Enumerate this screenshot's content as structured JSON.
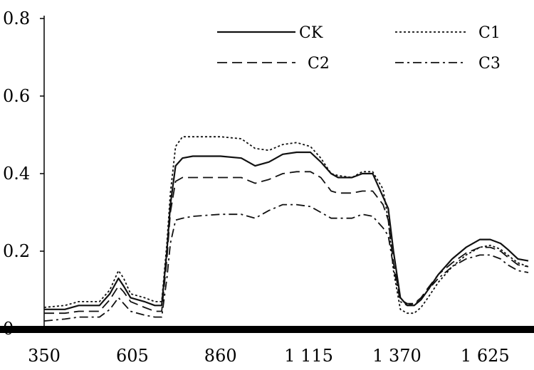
{
  "chart_data": {
    "type": "line",
    "xlabel": "",
    "ylabel": "",
    "xlim": [
      350,
      1750
    ],
    "ylim": [
      0,
      0.8
    ],
    "x_ticks": [
      350,
      605,
      860,
      1115,
      1370,
      1625
    ],
    "x_tick_labels": [
      "350",
      "605",
      "860",
      "1 115",
      "1 370",
      "1 625"
    ],
    "y_ticks": [
      0,
      0.2,
      0.4,
      0.6,
      0.8
    ],
    "y_tick_labels": [
      "0",
      "0.2",
      "0.4",
      "0.6",
      "0.8"
    ],
    "grid": false,
    "legend_position": "top-right",
    "series": [
      {
        "name": "CK",
        "style": "solid",
        "x": [
          350,
          410,
          450,
          490,
          510,
          540,
          565,
          580,
          600,
          640,
          670,
          690,
          705,
          715,
          730,
          750,
          780,
          860,
          920,
          960,
          1000,
          1040,
          1080,
          1120,
          1150,
          1180,
          1200,
          1240,
          1270,
          1300,
          1330,
          1345,
          1360,
          1380,
          1400,
          1420,
          1440,
          1460,
          1490,
          1530,
          1570,
          1610,
          1640,
          1670,
          1690,
          1720,
          1750
        ],
        "y": [
          0.05,
          0.05,
          0.06,
          0.06,
          0.06,
          0.09,
          0.13,
          0.11,
          0.08,
          0.07,
          0.06,
          0.06,
          0.2,
          0.32,
          0.42,
          0.44,
          0.445,
          0.445,
          0.44,
          0.42,
          0.43,
          0.45,
          0.455,
          0.455,
          0.43,
          0.4,
          0.39,
          0.39,
          0.4,
          0.4,
          0.34,
          0.31,
          0.2,
          0.08,
          0.06,
          0.06,
          0.075,
          0.1,
          0.14,
          0.18,
          0.21,
          0.23,
          0.23,
          0.22,
          0.205,
          0.18,
          0.175
        ]
      },
      {
        "name": "C1",
        "style": "dotted",
        "x": [
          350,
          410,
          450,
          490,
          510,
          540,
          565,
          580,
          600,
          640,
          670,
          690,
          705,
          715,
          730,
          750,
          780,
          860,
          920,
          960,
          1000,
          1040,
          1080,
          1120,
          1150,
          1180,
          1200,
          1240,
          1270,
          1300,
          1330,
          1345,
          1360,
          1380,
          1400,
          1420,
          1440,
          1460,
          1490,
          1530,
          1570,
          1610,
          1640,
          1670,
          1690,
          1720,
          1750
        ],
        "y": [
          0.055,
          0.06,
          0.07,
          0.07,
          0.07,
          0.1,
          0.15,
          0.13,
          0.09,
          0.08,
          0.07,
          0.07,
          0.22,
          0.35,
          0.47,
          0.495,
          0.495,
          0.495,
          0.49,
          0.465,
          0.46,
          0.475,
          0.48,
          0.47,
          0.44,
          0.4,
          0.395,
          0.39,
          0.405,
          0.405,
          0.36,
          0.28,
          0.15,
          0.05,
          0.04,
          0.04,
          0.055,
          0.08,
          0.12,
          0.16,
          0.19,
          0.21,
          0.215,
          0.205,
          0.19,
          0.17,
          0.16
        ]
      },
      {
        "name": "C2",
        "style": "dashed",
        "x": [
          350,
          410,
          450,
          490,
          510,
          540,
          565,
          580,
          600,
          640,
          670,
          690,
          705,
          715,
          730,
          750,
          780,
          860,
          920,
          960,
          1000,
          1040,
          1080,
          1120,
          1150,
          1180,
          1200,
          1240,
          1270,
          1300,
          1330,
          1345,
          1360,
          1380,
          1400,
          1420,
          1440,
          1460,
          1490,
          1530,
          1570,
          1610,
          1640,
          1670,
          1690,
          1720,
          1750
        ],
        "y": [
          0.04,
          0.04,
          0.045,
          0.045,
          0.045,
          0.075,
          0.11,
          0.095,
          0.07,
          0.055,
          0.045,
          0.045,
          0.18,
          0.3,
          0.38,
          0.39,
          0.39,
          0.39,
          0.39,
          0.375,
          0.385,
          0.4,
          0.405,
          0.405,
          0.39,
          0.355,
          0.35,
          0.35,
          0.355,
          0.355,
          0.32,
          0.28,
          0.17,
          0.075,
          0.065,
          0.065,
          0.08,
          0.105,
          0.14,
          0.17,
          0.195,
          0.21,
          0.21,
          0.2,
          0.185,
          0.165,
          0.16
        ]
      },
      {
        "name": "C3",
        "style": "dashdot",
        "x": [
          350,
          410,
          450,
          490,
          510,
          540,
          565,
          580,
          600,
          640,
          670,
          690,
          705,
          715,
          730,
          750,
          780,
          860,
          920,
          960,
          1000,
          1040,
          1080,
          1120,
          1150,
          1180,
          1200,
          1240,
          1270,
          1300,
          1330,
          1345,
          1360,
          1380,
          1400,
          1420,
          1440,
          1460,
          1490,
          1530,
          1570,
          1610,
          1640,
          1670,
          1690,
          1720,
          1750
        ],
        "y": [
          0.02,
          0.025,
          0.03,
          0.03,
          0.03,
          0.05,
          0.08,
          0.065,
          0.045,
          0.035,
          0.03,
          0.03,
          0.13,
          0.22,
          0.28,
          0.285,
          0.29,
          0.295,
          0.295,
          0.285,
          0.305,
          0.32,
          0.32,
          0.315,
          0.3,
          0.285,
          0.285,
          0.285,
          0.295,
          0.29,
          0.26,
          0.24,
          0.16,
          0.07,
          0.06,
          0.065,
          0.075,
          0.1,
          0.13,
          0.16,
          0.18,
          0.19,
          0.19,
          0.18,
          0.165,
          0.15,
          0.145
        ]
      }
    ]
  }
}
